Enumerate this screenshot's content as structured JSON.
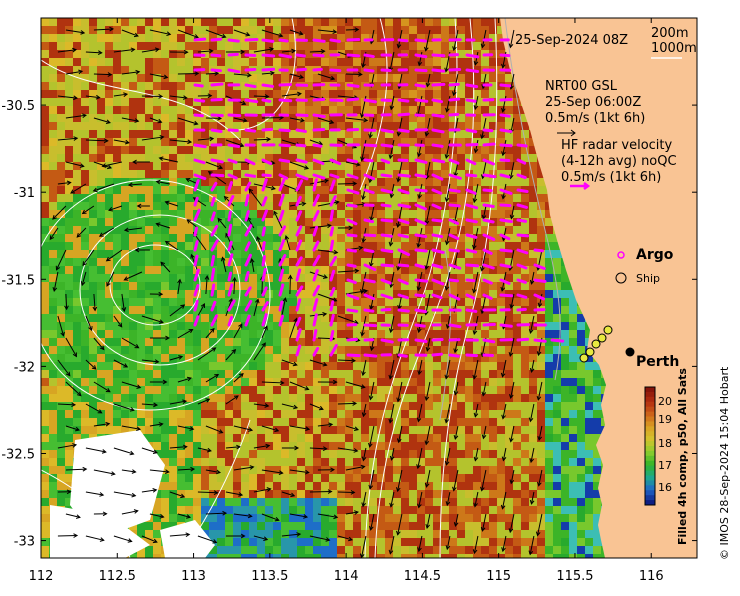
{
  "map": {
    "timestamp": "25-Sep-2024 08Z",
    "legend_isobaths": [
      "200m",
      "1000m"
    ],
    "gsl": {
      "title": "NRT00 GSL",
      "time": "25-Sep 06:00Z",
      "scale": "0.5m/s (1kt 6h)"
    },
    "hf": {
      "title": "HF radar velocity",
      "sub": "(4-12h avg) noQC",
      "scale": "0.5m/s (1kt 6h)"
    },
    "markers": {
      "argo": "Argo",
      "ship": "Ship",
      "city": "Perth"
    },
    "colorbar": {
      "title": "Filled 4h comp, p50, All Sats",
      "ticks": [
        "20",
        "19",
        "18",
        "17",
        "16"
      ]
    },
    "credit": "© IMOS 28-Sep-2024 15:04 Hobart",
    "x_ticks": [
      "112",
      "112.5",
      "113",
      "113.5",
      "114",
      "114.5",
      "115",
      "115.5",
      "116"
    ],
    "y_ticks": [
      "-30.5",
      "-31",
      "-31.5",
      "-32",
      "-32.5",
      "-33"
    ],
    "extent": {
      "lon": [
        112,
        116.3
      ],
      "lat": [
        -33.1,
        -30.0
      ]
    },
    "colors": {
      "land": "#f9c494",
      "hf_arrows": "#ff00ff",
      "gsl_arrows": "#000000",
      "isobath": "#ffffff",
      "ocean_hot": "#b0330f",
      "ocean_cool": "#27b02a"
    }
  }
}
